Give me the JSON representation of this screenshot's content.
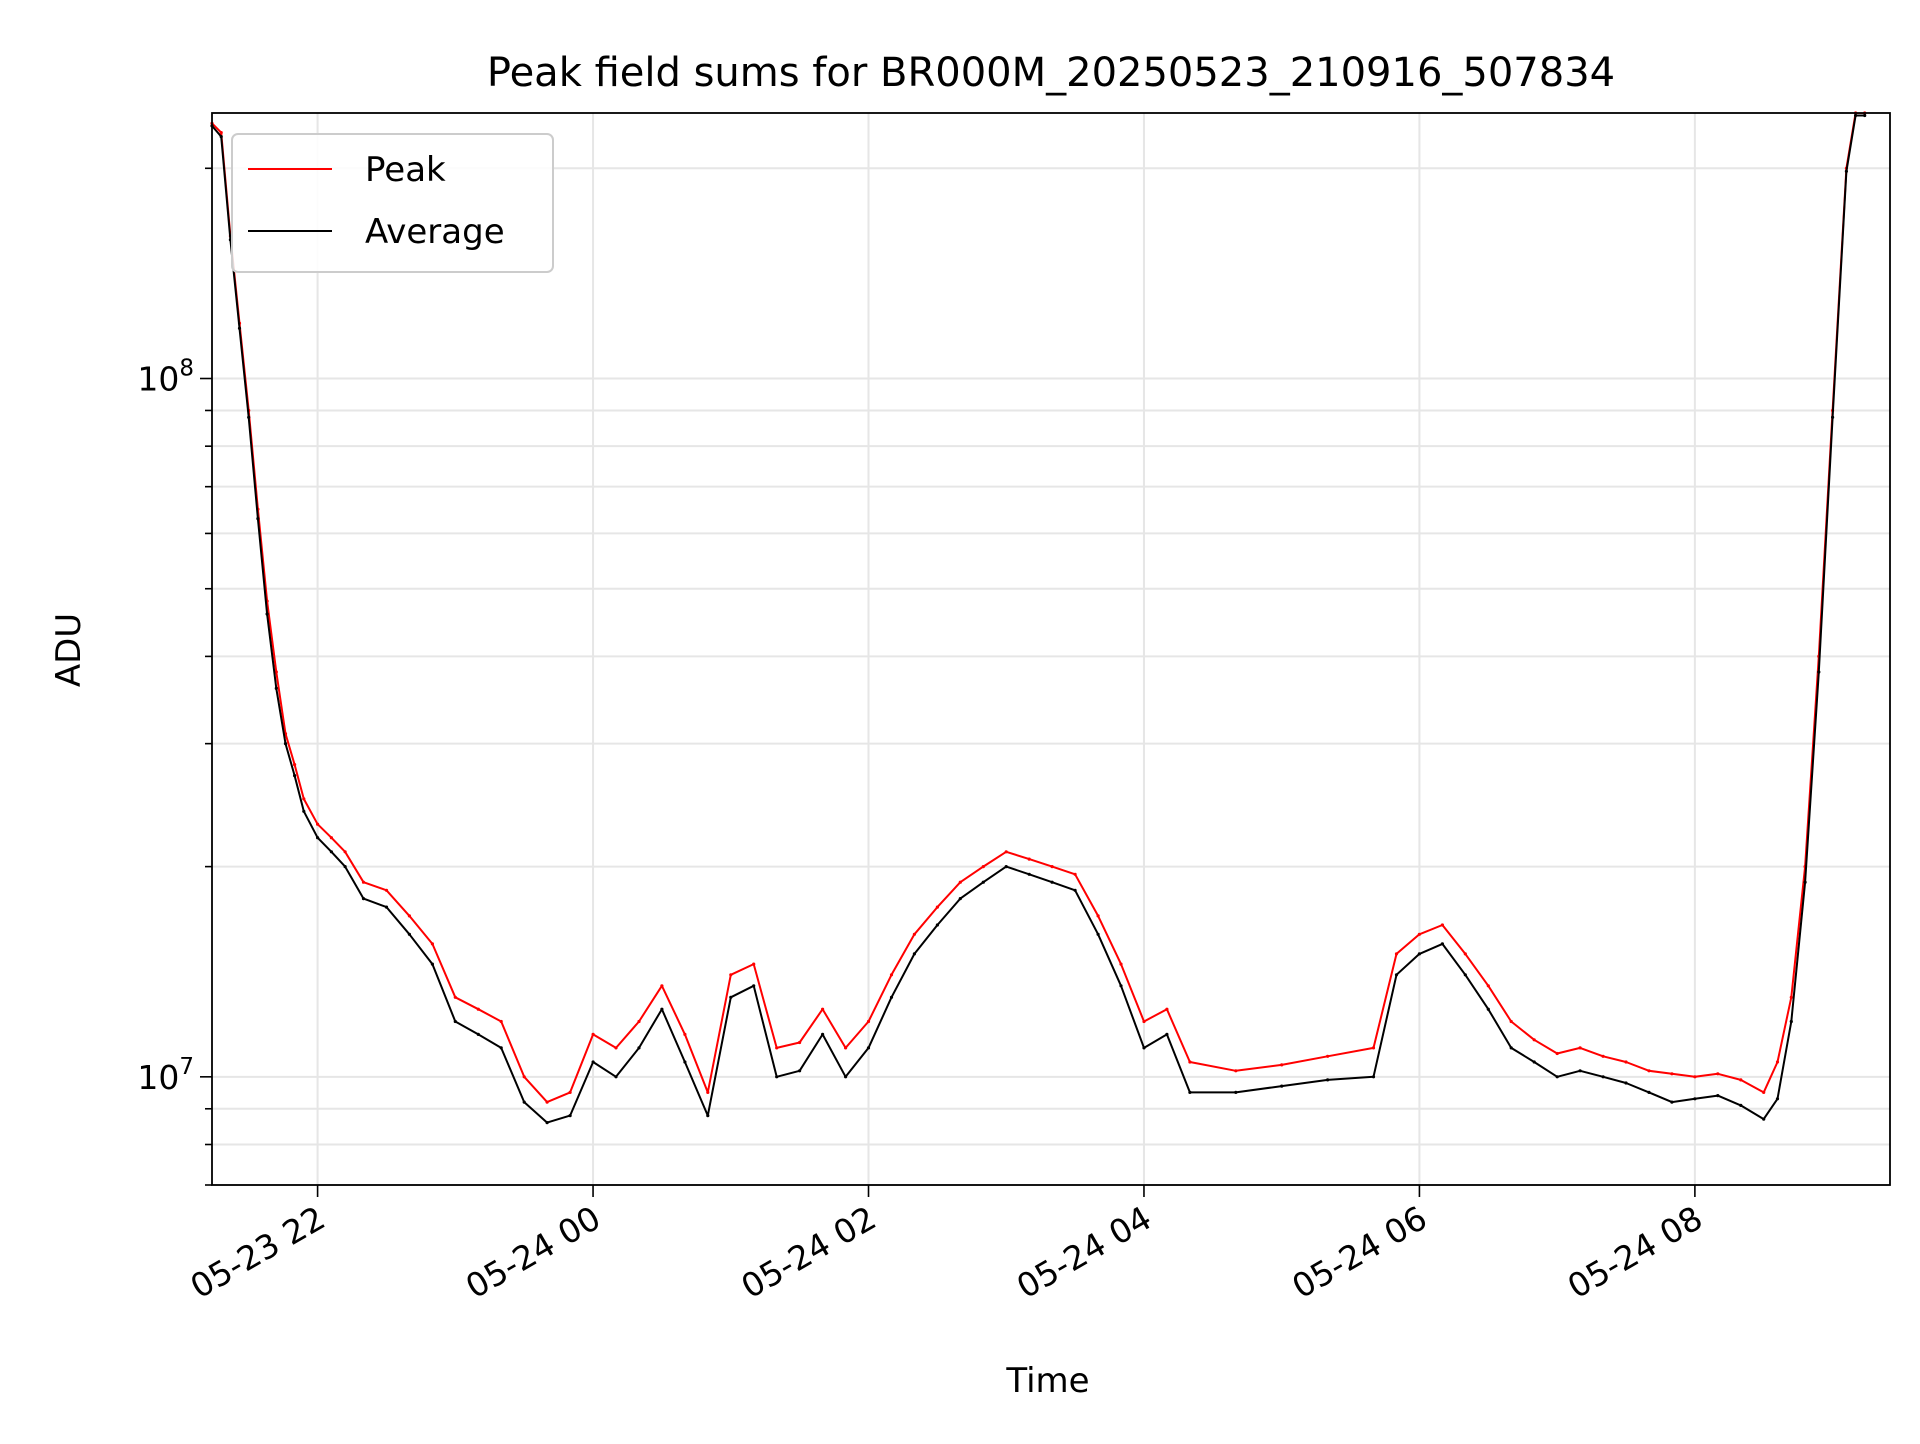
{
  "chart_data": {
    "type": "line",
    "title": "Peak field sums for BR000M_20250523_210916_507834",
    "xlabel": "Time",
    "ylabel": "ADU",
    "yscale": "log",
    "grid": true,
    "legend_position": "top-left",
    "x_tick_labels": [
      "05-23 22",
      "05-24 00",
      "05-24 02",
      "05-24 04",
      "05-24 06",
      "05-24 08"
    ],
    "x_ticks": [
      "2025-05-23 22:00",
      "2025-05-24 00:00",
      "2025-05-24 02:00",
      "2025-05-24 04:00",
      "2025-05-24 06:00",
      "2025-05-24 08:00"
    ],
    "xlim": [
      "2025-05-23 21:14",
      "2025-05-24 09:25"
    ],
    "y_tick_labels": [
      {
        "base": "10",
        "exp": "7"
      },
      {
        "base": "10",
        "exp": "8"
      }
    ],
    "y_ticks": [
      10000000,
      100000000
    ],
    "ylim": [
      7000000,
      240000000
    ],
    "x": [
      "2025-05-23 21:14",
      "2025-05-23 21:18",
      "2025-05-23 21:22",
      "2025-05-23 21:26",
      "2025-05-23 21:30",
      "2025-05-23 21:34",
      "2025-05-23 21:38",
      "2025-05-23 21:42",
      "2025-05-23 21:46",
      "2025-05-23 21:50",
      "2025-05-23 21:54",
      "2025-05-23 22:00",
      "2025-05-23 22:06",
      "2025-05-23 22:12",
      "2025-05-23 22:20",
      "2025-05-23 22:30",
      "2025-05-23 22:40",
      "2025-05-23 22:50",
      "2025-05-23 23:00",
      "2025-05-23 23:10",
      "2025-05-23 23:20",
      "2025-05-23 23:30",
      "2025-05-23 23:40",
      "2025-05-23 23:50",
      "2025-05-24 00:00",
      "2025-05-24 00:10",
      "2025-05-24 00:20",
      "2025-05-24 00:30",
      "2025-05-24 00:40",
      "2025-05-24 00:50",
      "2025-05-24 01:00",
      "2025-05-24 01:10",
      "2025-05-24 01:20",
      "2025-05-24 01:30",
      "2025-05-24 01:40",
      "2025-05-24 01:50",
      "2025-05-24 02:00",
      "2025-05-24 02:10",
      "2025-05-24 02:20",
      "2025-05-24 02:30",
      "2025-05-24 02:40",
      "2025-05-24 02:50",
      "2025-05-24 03:00",
      "2025-05-24 03:10",
      "2025-05-24 03:20",
      "2025-05-24 03:30",
      "2025-05-24 03:40",
      "2025-05-24 03:50",
      "2025-05-24 04:00",
      "2025-05-24 04:10",
      "2025-05-24 04:20",
      "2025-05-24 04:40",
      "2025-05-24 05:00",
      "2025-05-24 05:20",
      "2025-05-24 05:40",
      "2025-05-24 05:50",
      "2025-05-24 06:00",
      "2025-05-24 06:10",
      "2025-05-24 06:20",
      "2025-05-24 06:30",
      "2025-05-24 06:40",
      "2025-05-24 06:50",
      "2025-05-24 07:00",
      "2025-05-24 07:10",
      "2025-05-24 07:20",
      "2025-05-24 07:30",
      "2025-05-24 07:40",
      "2025-05-24 07:50",
      "2025-05-24 08:00",
      "2025-05-24 08:10",
      "2025-05-24 08:20",
      "2025-05-24 08:30",
      "2025-05-24 08:36",
      "2025-05-24 08:42",
      "2025-05-24 08:48",
      "2025-05-24 08:54",
      "2025-05-24 09:00",
      "2025-05-24 09:06",
      "2025-05-24 09:10",
      "2025-05-24 09:14"
    ],
    "series": [
      {
        "name": "Peak",
        "color": "#ff0000",
        "values": [
          232000000,
          225000000,
          160000000,
          120000000,
          90000000,
          65000000,
          48000000,
          38000000,
          31000000,
          28000000,
          25000000,
          23000000,
          22000000,
          21000000,
          19000000,
          18500000,
          17000000,
          15500000,
          13000000,
          12500000,
          12000000,
          10000000,
          9200000,
          9500000,
          11500000,
          11000000,
          12000000,
          13500000,
          11500000,
          9500000,
          14000000,
          14500000,
          11000000,
          11200000,
          12500000,
          11000000,
          12000000,
          14000000,
          16000000,
          17500000,
          19000000,
          20000000,
          21000000,
          20500000,
          20000000,
          19500000,
          17000000,
          14500000,
          12000000,
          12500000,
          10500000,
          10200000,
          10400000,
          10700000,
          11000000,
          15000000,
          16000000,
          16500000,
          15000000,
          13500000,
          12000000,
          11300000,
          10800000,
          11000000,
          10700000,
          10500000,
          10200000,
          10100000,
          10000000,
          10100000,
          9900000,
          9500000,
          10500000,
          13000000,
          20000000,
          40000000,
          90000000,
          200000000,
          240000000,
          240000000
        ]
      },
      {
        "name": "Average",
        "color": "#000000",
        "values": [
          230000000,
          222000000,
          158000000,
          118000000,
          88000000,
          63000000,
          46000000,
          36000000,
          30000000,
          27000000,
          24000000,
          22000000,
          21000000,
          20000000,
          18000000,
          17500000,
          16000000,
          14500000,
          12000000,
          11500000,
          11000000,
          9200000,
          8600000,
          8800000,
          10500000,
          10000000,
          11000000,
          12500000,
          10500000,
          8800000,
          13000000,
          13500000,
          10000000,
          10200000,
          11500000,
          10000000,
          11000000,
          13000000,
          15000000,
          16500000,
          18000000,
          19000000,
          20000000,
          19500000,
          19000000,
          18500000,
          16000000,
          13500000,
          11000000,
          11500000,
          9500000,
          9500000,
          9700000,
          9900000,
          10000000,
          14000000,
          15000000,
          15500000,
          14000000,
          12500000,
          11000000,
          10500000,
          10000000,
          10200000,
          10000000,
          9800000,
          9500000,
          9200000,
          9300000,
          9400000,
          9100000,
          8700000,
          9300000,
          12000000,
          19000000,
          38000000,
          88000000,
          198000000,
          238000000,
          238000000
        ]
      }
    ]
  }
}
